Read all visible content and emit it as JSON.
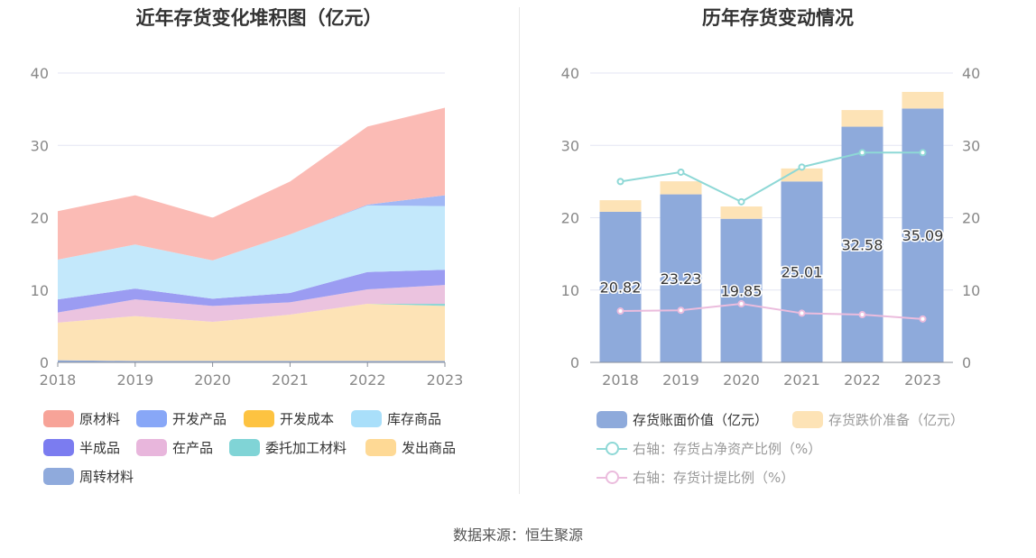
{
  "source": "数据来源：恒生聚源",
  "chart_data": [
    {
      "type": "area",
      "title": "近年存货变化堆积图（亿元）",
      "x": [
        "2018",
        "2019",
        "2020",
        "2021",
        "2022",
        "2023"
      ],
      "ylim": [
        0,
        40
      ],
      "yticks": [
        0,
        10,
        20,
        30,
        40
      ],
      "stacked": true,
      "grid": true,
      "legend_position": "bottom",
      "series": [
        {
          "name": "周转材料",
          "color": "#8faadc",
          "values": [
            0.3,
            0.2,
            0.2,
            0.2,
            0.2,
            0.2
          ]
        },
        {
          "name": "发出商品",
          "color": "#fde3b6",
          "values": [
            5.2,
            6.2,
            5.4,
            6.4,
            7.9,
            7.6
          ]
        },
        {
          "name": "委托加工材料",
          "color": "#8fd6d6",
          "values": [
            0.0,
            0.0,
            0.0,
            0.0,
            0.0,
            0.3
          ]
        },
        {
          "name": "在产品",
          "color": "#ebc3df",
          "values": [
            1.4,
            2.3,
            2.2,
            1.7,
            2.0,
            2.6
          ]
        },
        {
          "name": "半成品",
          "color": "#9b9cf2",
          "values": [
            1.8,
            1.5,
            1.0,
            1.3,
            2.4,
            2.1
          ]
        },
        {
          "name": "库存商品",
          "color": "#c3e8fb",
          "values": [
            5.5,
            6.1,
            5.3,
            8.1,
            9.2,
            8.8
          ]
        },
        {
          "name": "开发成本",
          "color": "#fdc841",
          "values": [
            0.0,
            0.0,
            0.0,
            0.0,
            0.0,
            0.0
          ]
        },
        {
          "name": "开发产品",
          "color": "#a1b8f5",
          "values": [
            0.0,
            0.0,
            0.0,
            0.0,
            0.1,
            1.5
          ]
        },
        {
          "name": "原材料",
          "color": "#fbbbb5",
          "values": [
            6.7,
            6.8,
            5.9,
            7.3,
            10.8,
            12.1
          ]
        }
      ],
      "legend": [
        {
          "name": "原材料",
          "color": "#f7a398"
        },
        {
          "name": "开发产品",
          "color": "#88a7f7"
        },
        {
          "name": "开发成本",
          "color": "#fdc341"
        },
        {
          "name": "库存商品",
          "color": "#a9dffa"
        },
        {
          "name": "半成品",
          "color": "#7b7cf0"
        },
        {
          "name": "在产品",
          "color": "#e8b6dc"
        },
        {
          "name": "委托加工材料",
          "color": "#80d4d6"
        },
        {
          "name": "发出商品",
          "color": "#fed995"
        },
        {
          "name": "周转材料",
          "color": "#8faadc"
        }
      ]
    },
    {
      "type": "bar",
      "title": "历年存货变动情况",
      "categories": [
        "2018",
        "2019",
        "2020",
        "2021",
        "2022",
        "2023"
      ],
      "ylim": [
        0,
        40
      ],
      "yticks": [
        0,
        10,
        20,
        30,
        40
      ],
      "y2lim": [
        0,
        40
      ],
      "y2ticks": [
        0,
        10,
        20,
        30,
        40
      ],
      "stacked": true,
      "grid": true,
      "legend_position": "bottom",
      "series": [
        {
          "name": "存货账面价值（亿元）",
          "color": "#8eaadb",
          "values": [
            20.82,
            23.23,
            19.85,
            25.01,
            32.58,
            35.09
          ],
          "labels": [
            "20.82",
            "23.23",
            "19.85",
            "25.01",
            "32.58",
            "35.09"
          ]
        },
        {
          "name": "存货跌价准备（亿元）",
          "color": "#fde3b6",
          "values": [
            1.6,
            1.8,
            1.7,
            1.8,
            2.3,
            2.3
          ]
        }
      ],
      "line_series": [
        {
          "name": "右轴：存货占净资产比例（%）",
          "color": "#8ed8d6",
          "values": [
            25.0,
            26.3,
            22.2,
            27.0,
            29.0,
            29.0
          ]
        },
        {
          "name": "右轴：存货计提比例（%）",
          "color": "#ebbcdd",
          "values": [
            7.1,
            7.2,
            8.1,
            6.8,
            6.6,
            6.0
          ]
        }
      ]
    }
  ]
}
